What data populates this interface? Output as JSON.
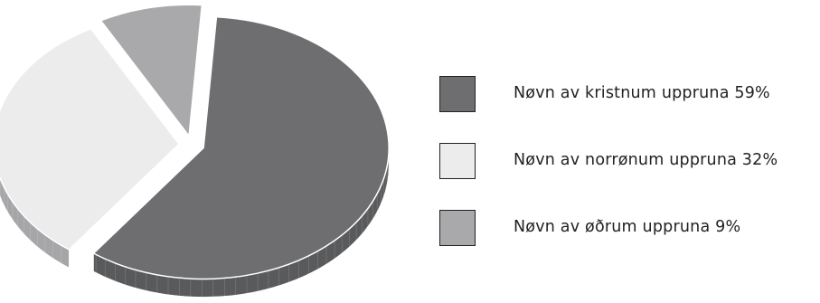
{
  "chart_data": {
    "type": "pie",
    "title": "",
    "slices": [
      {
        "label": "Nøvn av kristnum uppruna 59%",
        "value": 59,
        "color": "#6e6e70",
        "side_color": "#595a5c",
        "exploded": true
      },
      {
        "label": "Nøvn av norrønum uppruna 32%",
        "value": 32,
        "color": "#ececed",
        "side_color": "#a6a6a8",
        "exploded": true
      },
      {
        "label": "Nøvn av øðrum uppruna 9%",
        "value": 9,
        "color": "#a9a9ab",
        "side_color": "#8c8c8e",
        "exploded": true
      }
    ],
    "legend_position": "right",
    "style": "3d-exploded"
  }
}
